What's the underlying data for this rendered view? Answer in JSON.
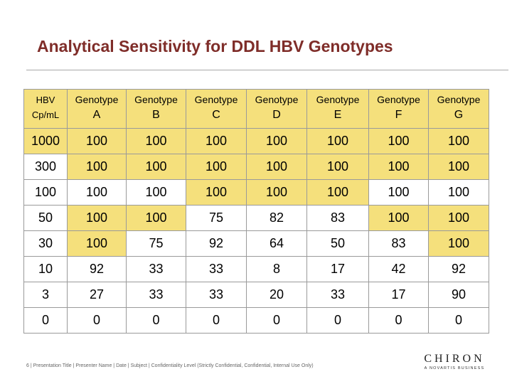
{
  "title": "Analytical Sensitivity for DDL HBV Genotypes",
  "colors": {
    "title": "#7f2d29",
    "header_fill": "#f5e07c",
    "highlight_fill": "#f5e07c",
    "rule": "#a9a9a9"
  },
  "table": {
    "header": [
      {
        "line1": "HBV",
        "line2": "Cp/mL"
      },
      {
        "line1": "Genotype",
        "line2": "A"
      },
      {
        "line1": "Genotype",
        "line2": "B"
      },
      {
        "line1": "Genotype",
        "line2": "C"
      },
      {
        "line1": "Genotype",
        "line2": "D"
      },
      {
        "line1": "Genotype",
        "line2": "E"
      },
      {
        "line1": "Genotype",
        "line2": "F"
      },
      {
        "line1": "Genotype",
        "line2": "G"
      }
    ],
    "rows": [
      [
        "1000",
        "100",
        "100",
        "100",
        "100",
        "100",
        "100",
        "100"
      ],
      [
        "300",
        "100",
        "100",
        "100",
        "100",
        "100",
        "100",
        "100"
      ],
      [
        "100",
        "100",
        "100",
        "100",
        "100",
        "100",
        "100",
        "100"
      ],
      [
        "50",
        "100",
        "100",
        "75",
        "82",
        "83",
        "100",
        "100"
      ],
      [
        "30",
        "100",
        "75",
        "92",
        "64",
        "50",
        "83",
        "100"
      ],
      [
        "10",
        "92",
        "33",
        "33",
        "8",
        "17",
        "42",
        "92"
      ],
      [
        "3",
        "27",
        "33",
        "33",
        "20",
        "33",
        "17",
        "90"
      ],
      [
        "0",
        "0",
        "0",
        "0",
        "0",
        "0",
        "0",
        "0"
      ]
    ],
    "highlighted": [
      [
        0,
        0
      ],
      [
        0,
        1
      ],
      [
        0,
        2
      ],
      [
        0,
        3
      ],
      [
        0,
        4
      ],
      [
        0,
        5
      ],
      [
        0,
        6
      ],
      [
        0,
        7
      ],
      [
        1,
        1
      ],
      [
        1,
        2
      ],
      [
        1,
        3
      ],
      [
        1,
        4
      ],
      [
        1,
        5
      ],
      [
        1,
        6
      ],
      [
        1,
        7
      ],
      [
        2,
        3
      ],
      [
        2,
        4
      ],
      [
        2,
        5
      ],
      [
        3,
        1
      ],
      [
        3,
        2
      ],
      [
        3,
        6
      ],
      [
        3,
        7
      ],
      [
        4,
        1
      ],
      [
        4,
        7
      ]
    ]
  },
  "footer": "6 | Presentation Title | Presenter Name | Date | Subject | Confidentiality Level (Strictly Confidential, Confidential, Internal Use Only)",
  "logo": {
    "name": "CHIRON",
    "tagline": "A NOVARTIS BUSINESS"
  }
}
